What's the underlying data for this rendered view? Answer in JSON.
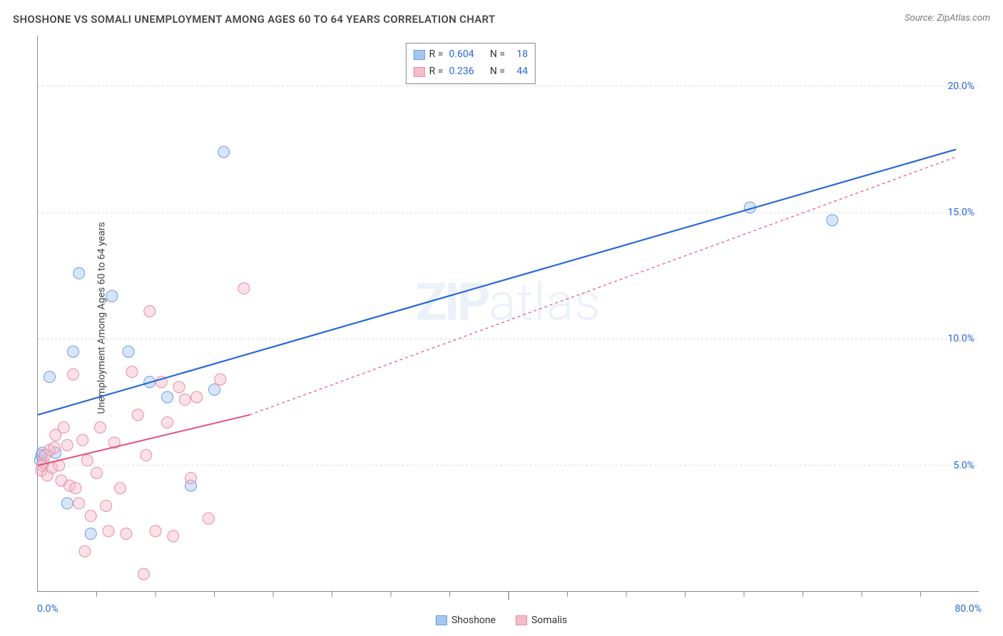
{
  "header": {
    "title": "SHOSHONE VS SOMALI UNEMPLOYMENT AMONG AGES 60 TO 64 YEARS CORRELATION CHART",
    "source_prefix": "Source: ",
    "source": "ZipAtlas.com"
  },
  "watermark": {
    "bold": "ZIP",
    "light": "atlas"
  },
  "chart": {
    "type": "scatter",
    "ylabel": "Unemployment Among Ages 60 to 64 years",
    "xlim": [
      0,
      80
    ],
    "ylim": [
      0,
      22
    ],
    "x_min_label": "0.0%",
    "x_max_label": "80.0%",
    "y_ticks": [
      {
        "v": 5,
        "label": "5.0%"
      },
      {
        "v": 10,
        "label": "10.0%"
      },
      {
        "v": 15,
        "label": "15.0%"
      },
      {
        "v": 20,
        "label": "20.0%"
      }
    ],
    "x_minor_ticks": [
      5,
      10,
      15,
      20,
      25,
      30,
      35,
      40,
      45,
      50,
      55,
      60,
      65,
      70,
      75
    ],
    "grid_color": "#d9d9d9",
    "background_color": "#ffffff",
    "marker_radius": 8,
    "marker_opacity": 0.45,
    "series": [
      {
        "name": "Shoshone",
        "color_fill": "#a6c6ee",
        "color_stroke": "#6a9de0",
        "line_color": "#2968d8",
        "line_width": 2.2,
        "line_dash": "none",
        "R": "0.604",
        "N": "18",
        "trend": {
          "x1": 0,
          "y1": 7.0,
          "x2": 78,
          "y2": 17.5
        },
        "points": [
          [
            0.2,
            5.2
          ],
          [
            0.3,
            5.4
          ],
          [
            0.4,
            5.5
          ],
          [
            1.0,
            8.5
          ],
          [
            1.5,
            5.5
          ],
          [
            2.5,
            3.5
          ],
          [
            3.0,
            9.5
          ],
          [
            3.5,
            12.6
          ],
          [
            4.5,
            2.3
          ],
          [
            6.3,
            11.7
          ],
          [
            7.7,
            9.5
          ],
          [
            9.5,
            8.3
          ],
          [
            11.0,
            7.7
          ],
          [
            13.0,
            4.2
          ],
          [
            15.0,
            8.0
          ],
          [
            15.8,
            17.4
          ],
          [
            60.5,
            15.2
          ],
          [
            67.5,
            14.7
          ]
        ]
      },
      {
        "name": "Somalis",
        "color_fill": "#f5bcc9",
        "color_stroke": "#e88ba4",
        "line_color": "#e54f7b",
        "line_width": 2.0,
        "line_dash": "4 4",
        "R": "0.236",
        "N": "44",
        "trend_solid": {
          "x1": 0,
          "y1": 5.0,
          "x2": 18,
          "y2": 7.0
        },
        "trend_dashed": {
          "x1": 18,
          "y1": 7.0,
          "x2": 78,
          "y2": 17.2
        },
        "points": [
          [
            0.3,
            4.8
          ],
          [
            0.4,
            5.0
          ],
          [
            0.5,
            5.1
          ],
          [
            0.6,
            5.4
          ],
          [
            0.8,
            4.6
          ],
          [
            1.0,
            5.6
          ],
          [
            1.2,
            4.9
          ],
          [
            1.4,
            5.7
          ],
          [
            1.5,
            6.2
          ],
          [
            1.8,
            5.0
          ],
          [
            2.0,
            4.4
          ],
          [
            2.2,
            6.5
          ],
          [
            2.5,
            5.8
          ],
          [
            2.7,
            4.2
          ],
          [
            3.0,
            8.6
          ],
          [
            3.2,
            4.1
          ],
          [
            3.5,
            3.5
          ],
          [
            3.8,
            6.0
          ],
          [
            4.0,
            1.6
          ],
          [
            4.2,
            5.2
          ],
          [
            4.5,
            3.0
          ],
          [
            5.0,
            4.7
          ],
          [
            5.3,
            6.5
          ],
          [
            5.8,
            3.4
          ],
          [
            6.0,
            2.4
          ],
          [
            6.5,
            5.9
          ],
          [
            7.0,
            4.1
          ],
          [
            7.5,
            2.3
          ],
          [
            8.0,
            8.7
          ],
          [
            8.5,
            7.0
          ],
          [
            9.0,
            0.7
          ],
          [
            9.2,
            5.4
          ],
          [
            9.5,
            11.1
          ],
          [
            10.0,
            2.4
          ],
          [
            10.5,
            8.3
          ],
          [
            11.0,
            6.7
          ],
          [
            11.5,
            2.2
          ],
          [
            12.0,
            8.1
          ],
          [
            12.5,
            7.6
          ],
          [
            13.0,
            4.5
          ],
          [
            13.5,
            7.7
          ],
          [
            14.5,
            2.9
          ],
          [
            15.5,
            8.4
          ],
          [
            17.5,
            12.0
          ]
        ]
      }
    ]
  },
  "legend_bottom": [
    {
      "label": "Shoshone",
      "fill": "#a6c6ee",
      "stroke": "#6a9de0"
    },
    {
      "label": "Somalis",
      "fill": "#f5bcc9",
      "stroke": "#e88ba4"
    }
  ]
}
